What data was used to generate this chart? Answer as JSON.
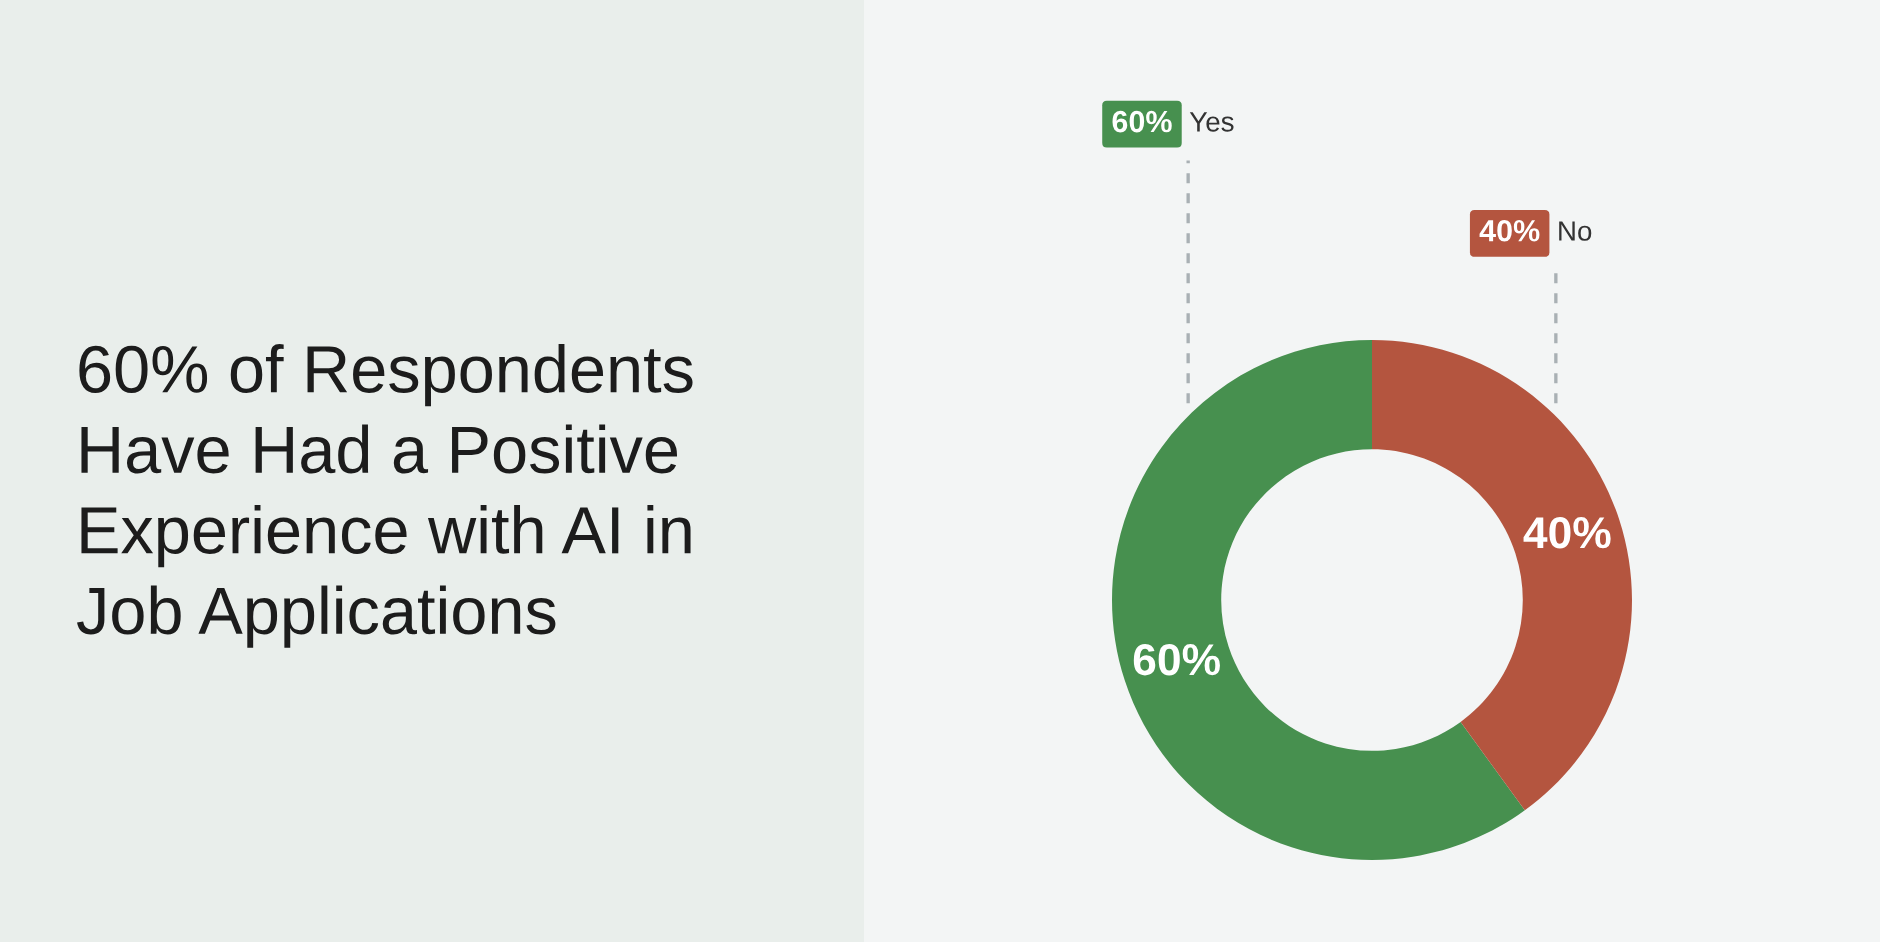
{
  "chart_data": {
    "type": "donut",
    "title": "60% of Respondents Have Had a Positive Experience with AI in Job Applications",
    "categories": [
      "Yes",
      "No"
    ],
    "values": [
      60,
      40
    ],
    "colors": [
      "#47904f",
      "#b4553f"
    ],
    "value_labels": [
      "60%",
      "40%"
    ],
    "legend": "top"
  }
}
